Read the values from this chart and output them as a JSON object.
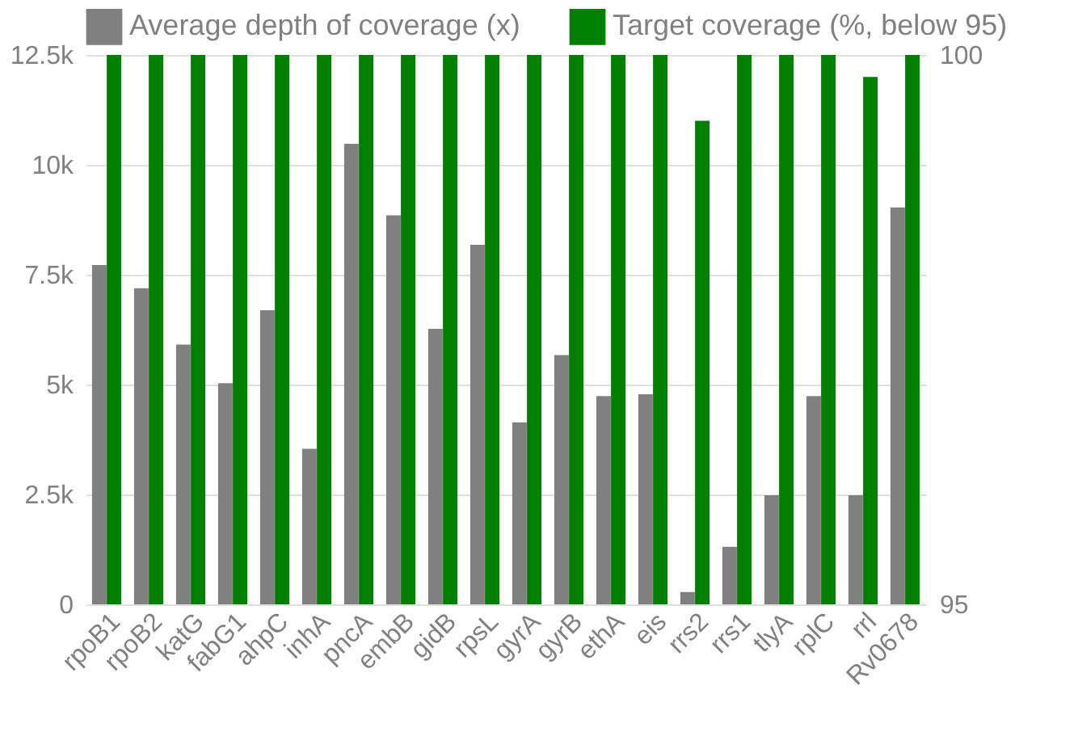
{
  "chart_data": {
    "type": "bar",
    "categories": [
      "rpoB1",
      "rpoB2",
      "katG",
      "fabG1",
      "ahpC",
      "inhA",
      "pncA",
      "embB",
      "gidB",
      "rpsL",
      "gyrA",
      "gyrB",
      "ethA",
      "eis",
      "rrs2",
      "rrs1",
      "tlyA",
      "rplC",
      "rrl",
      "Rv0678"
    ],
    "series": [
      {
        "name": "Average depth of coverage (x)",
        "color": "#808080",
        "values": [
          7720,
          7190,
          5910,
          5030,
          6690,
          3540,
          10480,
          8850,
          6270,
          8180,
          4140,
          5670,
          4740,
          4780,
          280,
          1310,
          2480,
          4740,
          2480,
          9030
        ]
      },
      {
        "name": "Target coverage (%, below 95)",
        "color": "#008000",
        "axis": "y2",
        "values": [
          100,
          100,
          100,
          100,
          100,
          100,
          100,
          100,
          100,
          100,
          100,
          100,
          100,
          100,
          99.4,
          100,
          100,
          100,
          99.8,
          100
        ]
      }
    ],
    "ylim": [
      0,
      12500
    ],
    "yticks": [
      {
        "value": 0,
        "label": "0"
      },
      {
        "value": 2500,
        "label": "2.5k"
      },
      {
        "value": 5000,
        "label": "5k"
      },
      {
        "value": 7500,
        "label": "7.5k"
      },
      {
        "value": 10000,
        "label": "10k"
      },
      {
        "value": 12500,
        "label": "12.5k"
      }
    ],
    "y2lim": [
      95,
      100
    ],
    "y2ticks": [
      95,
      100
    ],
    "grid": "y",
    "legend": "top left"
  }
}
